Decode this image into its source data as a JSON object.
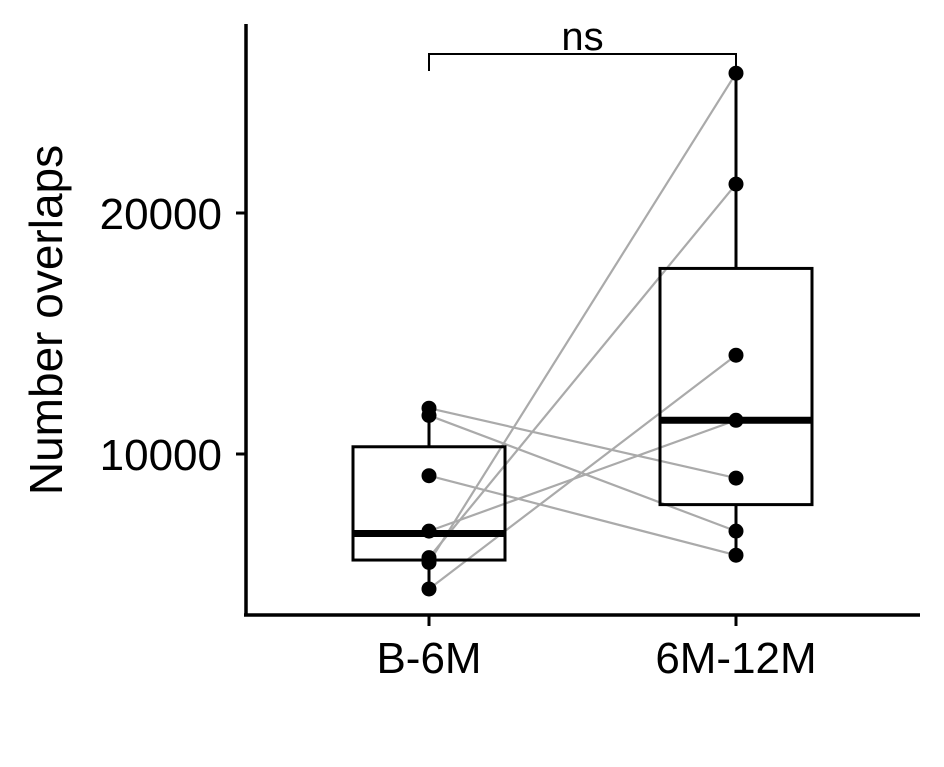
{
  "chart_data": {
    "type": "box",
    "xlabel": "",
    "ylabel": "Number overlaps",
    "categories": [
      "B-6M",
      "6M-12M"
    ],
    "ylim": [
      4000,
      27500
    ],
    "yticks": [
      10000,
      20000
    ],
    "ytick_labels": [
      "10000",
      "20000"
    ],
    "grid": false,
    "legend": "none",
    "boxes": [
      {
        "category": "B-6M",
        "q1": 5600,
        "median": 6700,
        "q3": 10300,
        "whisker_low": 4400,
        "whisker_high": 11900
      },
      {
        "category": "6M-12M",
        "q1": 7900,
        "median": 11400,
        "q3": 17700,
        "whisker_low": 5800,
        "whisker_high": 25800
      }
    ],
    "pairs": [
      {
        "b6m": 11900,
        "m6m12": 9000
      },
      {
        "b6m": 11600,
        "m6m12": 6800
      },
      {
        "b6m": 9100,
        "m6m12": 5800
      },
      {
        "b6m": 6800,
        "m6m12": 11400
      },
      {
        "b6m": 5700,
        "m6m12": 21200
      },
      {
        "b6m": 5500,
        "m6m12": 25800
      },
      {
        "b6m": 4400,
        "m6m12": 14100
      }
    ],
    "annotation": {
      "text": "ns",
      "between": [
        "B-6M",
        "6M-12M"
      ],
      "y": 26600
    }
  },
  "colors": {
    "box_stroke": "#000000",
    "points": "#000000",
    "pair_lines": "#aaaaaa",
    "axis": "#000000"
  }
}
